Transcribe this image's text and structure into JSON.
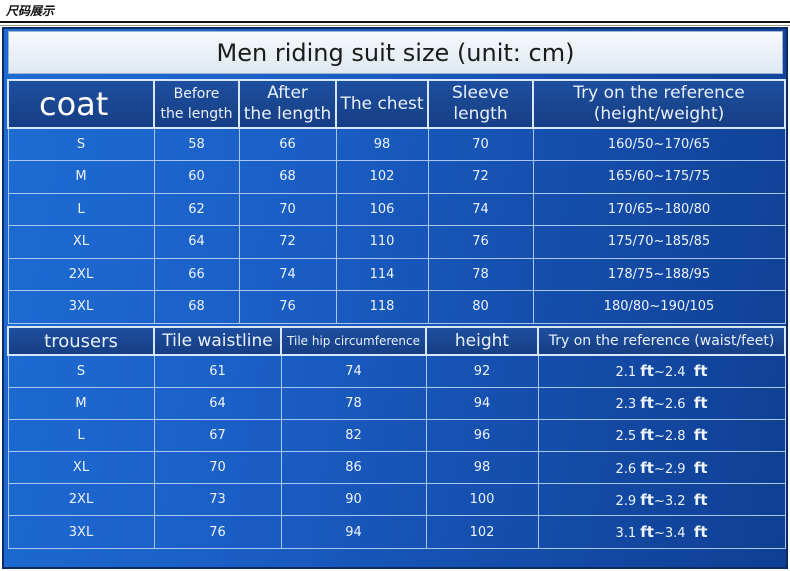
{
  "page_label": "尺码展示",
  "title": "Men riding suit size (unit: cm)",
  "coat": {
    "label": "coat",
    "headers": [
      {
        "l1": "Before",
        "l2": "the length"
      },
      {
        "l1": "After",
        "l2": "the length"
      },
      {
        "l1": "The chest",
        "l2": ""
      },
      {
        "l1": "Sleeve",
        "l2": "length"
      },
      {
        "l1": "Try on the reference",
        "l2": "(height/weight)"
      }
    ],
    "rows": [
      {
        "size": "S",
        "before": "58",
        "after": "66",
        "chest": "98",
        "sleeve": "70",
        "ref": "160/50~170/65"
      },
      {
        "size": "M",
        "before": "60",
        "after": "68",
        "chest": "102",
        "sleeve": "72",
        "ref": "165/60~175/75"
      },
      {
        "size": "L",
        "before": "62",
        "after": "70",
        "chest": "106",
        "sleeve": "74",
        "ref": "170/65~180/80"
      },
      {
        "size": "XL",
        "before": "64",
        "after": "72",
        "chest": "110",
        "sleeve": "76",
        "ref": "175/70~185/85"
      },
      {
        "size": "2XL",
        "before": "66",
        "after": "74",
        "chest": "114",
        "sleeve": "78",
        "ref": "178/75~188/95"
      },
      {
        "size": "3XL",
        "before": "68",
        "after": "76",
        "chest": "118",
        "sleeve": "80",
        "ref": "180/80~190/105"
      }
    ]
  },
  "trousers": {
    "label": "trousers",
    "headers": [
      "Tile waistline",
      "Tile hip circumference",
      "height",
      "Try on the reference (waist/feet)"
    ],
    "unit": "ft",
    "rows": [
      {
        "size": "S",
        "waist": "61",
        "hip": "74",
        "height": "92",
        "ref_from": "2.1",
        "ref_to": "2.4"
      },
      {
        "size": "M",
        "waist": "64",
        "hip": "78",
        "height": "94",
        "ref_from": "2.3",
        "ref_to": "2.6"
      },
      {
        "size": "L",
        "waist": "67",
        "hip": "82",
        "height": "96",
        "ref_from": "2.5",
        "ref_to": "2.8"
      },
      {
        "size": "XL",
        "waist": "70",
        "hip": "86",
        "height": "98",
        "ref_from": "2.6",
        "ref_to": "2.9"
      },
      {
        "size": "2XL",
        "waist": "73",
        "hip": "90",
        "height": "100",
        "ref_from": "2.9",
        "ref_to": "3.2"
      },
      {
        "size": "3XL",
        "waist": "76",
        "hip": "94",
        "height": "102",
        "ref_from": "3.1",
        "ref_to": "3.4"
      }
    ]
  }
}
